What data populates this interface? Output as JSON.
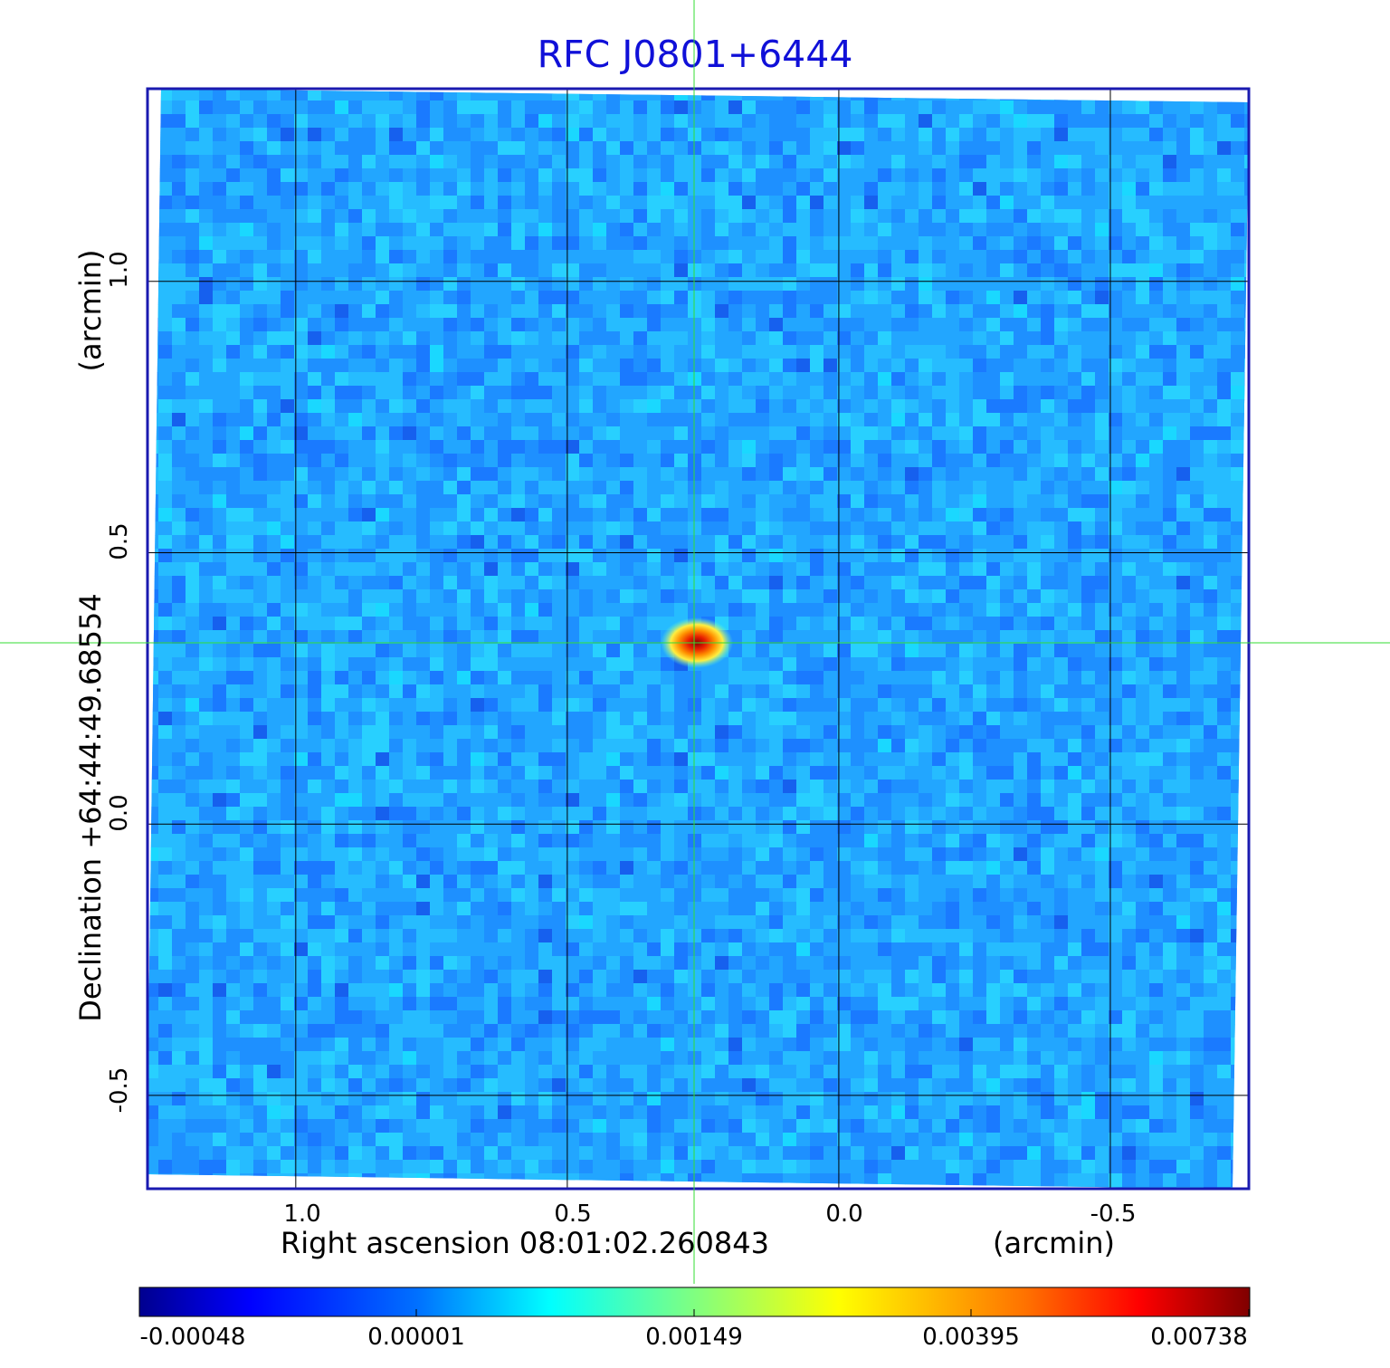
{
  "chart_data": {
    "type": "heatmap",
    "title": "RFC J0801+6444",
    "xlabel": "Right ascension  08:01:02.260843",
    "xunit": "(arcmin)",
    "ylabel": "Declination  +64:44:49.68554",
    "yunit": "(arcmin)",
    "x_ticks": [
      {
        "value": 1.0,
        "label": "1.0"
      },
      {
        "value": 0.5,
        "label": "0.5"
      },
      {
        "value": 0.0,
        "label": "0.0"
      },
      {
        "value": -0.5,
        "label": "-0.5"
      }
    ],
    "y_ticks": [
      {
        "value": 1.0,
        "label": "1.0"
      },
      {
        "value": 0.5,
        "label": "0.5"
      },
      {
        "value": 0.0,
        "label": "0.0"
      },
      {
        "value": -0.5,
        "label": "-0.5"
      }
    ],
    "xlim": [
      1.273,
      -0.755
    ],
    "ylim": [
      -0.672,
      1.355
    ],
    "grid": true,
    "source": {
      "x": 0.266,
      "y": 0.333,
      "peak": 0.00738
    },
    "crosshair": {
      "x": 0.266,
      "y": 0.333,
      "color": "#33dd33"
    },
    "colorbar": {
      "ticks": [
        "-0.00048",
        "0.00001",
        "0.00149",
        "0.00395",
        "0.00738"
      ],
      "colormap": [
        "#00008f",
        "#0000ff",
        "#00ffff",
        "#ffff00",
        "#ff0000",
        "#800000"
      ]
    },
    "colors": {
      "title": "#1010d8",
      "frame": "#1a1ab0",
      "background_noise": "#1a9aff"
    }
  }
}
